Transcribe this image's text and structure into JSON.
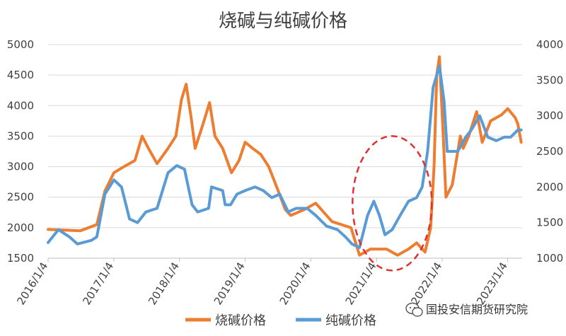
{
  "chart_data": {
    "type": "line",
    "title": "烧碱与纯碱价格",
    "x_tick_labels": [
      "2016/1/4",
      "2017/1/4",
      "2018/1/4",
      "2019/1/4",
      "2020/1/4",
      "2021/1/4",
      "2022/1/4",
      "2023/1/4"
    ],
    "y_left": {
      "ticks": [
        1500,
        2000,
        2500,
        3000,
        3500,
        4000,
        4500,
        5000
      ],
      "ylim": [
        1500,
        5000
      ]
    },
    "y_right": {
      "ticks": [
        1000,
        1500,
        2000,
        2500,
        3000,
        3500,
        4000
      ],
      "ylim": [
        1000,
        4000
      ]
    },
    "grid": true,
    "legend_position": "bottom",
    "series": [
      {
        "name": "烧碱价格",
        "color": "#ED7D31",
        "axis": "left",
        "points": [
          [
            "2016-01-04",
            1970
          ],
          [
            "2016-04-01",
            1960
          ],
          [
            "2016-07-01",
            1950
          ],
          [
            "2016-10-01",
            2050
          ],
          [
            "2016-11-15",
            2600
          ],
          [
            "2017-01-04",
            2900
          ],
          [
            "2017-03-01",
            3000
          ],
          [
            "2017-05-01",
            3100
          ],
          [
            "2017-06-10",
            3500
          ],
          [
            "2017-07-15",
            3300
          ],
          [
            "2017-09-01",
            3050
          ],
          [
            "2017-11-01",
            3300
          ],
          [
            "2017-12-15",
            3500
          ],
          [
            "2018-01-15",
            4100
          ],
          [
            "2018-02-10",
            4350
          ],
          [
            "2018-03-10",
            3800
          ],
          [
            "2018-04-01",
            3300
          ],
          [
            "2018-05-15",
            3700
          ],
          [
            "2018-06-20",
            4050
          ],
          [
            "2018-07-20",
            3500
          ],
          [
            "2018-09-01",
            3300
          ],
          [
            "2018-10-20",
            2900
          ],
          [
            "2018-12-01",
            3100
          ],
          [
            "2019-01-04",
            3400
          ],
          [
            "2019-02-15",
            3300
          ],
          [
            "2019-04-01",
            3200
          ],
          [
            "2019-05-15",
            3000
          ],
          [
            "2019-07-01",
            2650
          ],
          [
            "2019-08-15",
            2300
          ],
          [
            "2019-09-15",
            2200
          ],
          [
            "2019-12-01",
            2300
          ],
          [
            "2020-02-01",
            2400
          ],
          [
            "2020-05-01",
            2100
          ],
          [
            "2020-08-15",
            2000
          ],
          [
            "2020-10-01",
            1550
          ],
          [
            "2020-12-01",
            1650
          ],
          [
            "2021-03-01",
            1650
          ],
          [
            "2021-05-01",
            1550
          ],
          [
            "2021-07-01",
            1650
          ],
          [
            "2021-08-15",
            1750
          ],
          [
            "2021-10-01",
            1600
          ],
          [
            "2021-11-01",
            2000
          ],
          [
            "2021-11-20",
            3000
          ],
          [
            "2021-12-05",
            4500
          ],
          [
            "2021-12-20",
            4800
          ],
          [
            "2022-01-10",
            3500
          ],
          [
            "2022-01-25",
            2500
          ],
          [
            "2022-03-01",
            2700
          ],
          [
            "2022-04-15",
            3500
          ],
          [
            "2022-05-01",
            3300
          ],
          [
            "2022-06-01",
            3500
          ],
          [
            "2022-07-15",
            3900
          ],
          [
            "2022-08-15",
            3400
          ],
          [
            "2022-10-01",
            3750
          ],
          [
            "2022-12-01",
            3850
          ],
          [
            "2023-01-04",
            3950
          ],
          [
            "2023-02-15",
            3800
          ],
          [
            "2023-03-01",
            3700
          ],
          [
            "2023-03-20",
            3400
          ]
        ]
      },
      {
        "name": "纯碱价格",
        "color": "#5B9BD5",
        "axis": "right",
        "points": [
          [
            "2016-01-04",
            1220
          ],
          [
            "2016-03-01",
            1400
          ],
          [
            "2016-05-01",
            1300
          ],
          [
            "2016-06-15",
            1200
          ],
          [
            "2016-09-01",
            1250
          ],
          [
            "2016-10-01",
            1300
          ],
          [
            "2016-11-15",
            1900
          ],
          [
            "2017-01-04",
            2100
          ],
          [
            "2017-02-15",
            2000
          ],
          [
            "2017-04-01",
            1550
          ],
          [
            "2017-05-15",
            1500
          ],
          [
            "2017-07-01",
            1650
          ],
          [
            "2017-09-01",
            1700
          ],
          [
            "2017-11-01",
            2200
          ],
          [
            "2017-12-20",
            2300
          ],
          [
            "2018-02-01",
            2250
          ],
          [
            "2018-03-15",
            1750
          ],
          [
            "2018-04-15",
            1650
          ],
          [
            "2018-06-15",
            1700
          ],
          [
            "2018-07-01",
            2000
          ],
          [
            "2018-09-01",
            1950
          ],
          [
            "2018-09-15",
            1750
          ],
          [
            "2018-10-15",
            1750
          ],
          [
            "2018-11-20",
            1900
          ],
          [
            "2019-01-04",
            1950
          ],
          [
            "2019-03-01",
            2000
          ],
          [
            "2019-04-15",
            1950
          ],
          [
            "2019-06-01",
            1850
          ],
          [
            "2019-07-15",
            1900
          ],
          [
            "2019-09-01",
            1650
          ],
          [
            "2019-10-15",
            1700
          ],
          [
            "2019-12-15",
            1700
          ],
          [
            "2020-02-01",
            1600
          ],
          [
            "2020-04-01",
            1450
          ],
          [
            "2020-06-01",
            1400
          ],
          [
            "2020-07-15",
            1300
          ],
          [
            "2020-08-20",
            1200
          ],
          [
            "2020-10-01",
            1150
          ],
          [
            "2020-11-15",
            1600
          ],
          [
            "2020-12-20",
            1800
          ],
          [
            "2021-01-20",
            1600
          ],
          [
            "2021-02-20",
            1330
          ],
          [
            "2021-04-01",
            1400
          ],
          [
            "2021-05-15",
            1600
          ],
          [
            "2021-07-01",
            1800
          ],
          [
            "2021-08-15",
            1850
          ],
          [
            "2021-09-15",
            2000
          ],
          [
            "2021-10-15",
            2500
          ],
          [
            "2021-11-15",
            3400
          ],
          [
            "2021-12-20",
            3700
          ],
          [
            "2022-01-15",
            3200
          ],
          [
            "2022-02-01",
            2500
          ],
          [
            "2022-04-01",
            2500
          ],
          [
            "2022-05-15",
            2700
          ],
          [
            "2022-06-15",
            2800
          ],
          [
            "2022-08-01",
            3000
          ],
          [
            "2022-09-15",
            2700
          ],
          [
            "2022-11-01",
            2650
          ],
          [
            "2022-12-15",
            2700
          ],
          [
            "2023-01-20",
            2700
          ],
          [
            "2023-03-01",
            2800
          ],
          [
            "2023-03-20",
            2800
          ]
        ]
      }
    ]
  },
  "highlight": {
    "shape": "ellipse",
    "style": "dashed",
    "color": "#E03030"
  },
  "watermark": {
    "text": "国投安信期货研究院"
  }
}
